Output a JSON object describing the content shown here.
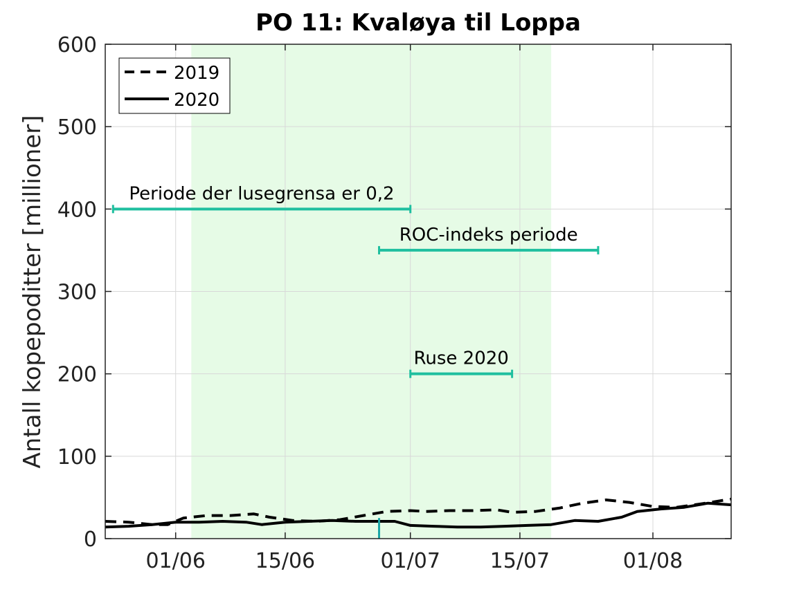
{
  "chart_data": {
    "type": "line",
    "title": "PO 11: Kvaløya til Loppa",
    "xlabel": "",
    "ylabel": "Antall kopepoditter [millioner]",
    "x_axis": "date",
    "xlim": [
      "2020-05-23",
      "2020-08-11"
    ],
    "ylim": [
      0,
      600
    ],
    "yticks": [
      0,
      100,
      200,
      300,
      400,
      500,
      600
    ],
    "xticks": [
      {
        "date": "2020-06-01",
        "label": "01/06"
      },
      {
        "date": "2020-06-15",
        "label": "15/06"
      },
      {
        "date": "2020-07-01",
        "label": "01/07"
      },
      {
        "date": "2020-07-15",
        "label": "15/07"
      },
      {
        "date": "2020-08-01",
        "label": "01/08"
      }
    ],
    "grid": true,
    "legend_position": "top-left",
    "shaded_region": {
      "start": "2020-06-03",
      "end": "2020-07-19",
      "color": "#e6fbe6"
    },
    "series": [
      {
        "name": "2019",
        "style": "dashed",
        "color": "#000000",
        "points": [
          [
            "2020-05-23",
            21
          ],
          [
            "2020-05-26",
            20
          ],
          [
            "2020-05-29",
            17
          ],
          [
            "2020-05-31",
            17
          ],
          [
            "2020-06-02",
            25
          ],
          [
            "2020-06-05",
            28
          ],
          [
            "2020-06-08",
            28
          ],
          [
            "2020-06-11",
            30
          ],
          [
            "2020-06-13",
            26
          ],
          [
            "2020-06-16",
            22
          ],
          [
            "2020-06-19",
            21
          ],
          [
            "2020-06-22",
            23
          ],
          [
            "2020-06-25",
            28
          ],
          [
            "2020-06-28",
            33
          ],
          [
            "2020-07-01",
            34
          ],
          [
            "2020-07-03",
            33
          ],
          [
            "2020-07-06",
            34
          ],
          [
            "2020-07-09",
            34
          ],
          [
            "2020-07-12",
            35
          ],
          [
            "2020-07-14",
            32
          ],
          [
            "2020-07-17",
            33
          ],
          [
            "2020-07-20",
            37
          ],
          [
            "2020-07-23",
            43
          ],
          [
            "2020-07-26",
            47
          ],
          [
            "2020-07-29",
            44
          ],
          [
            "2020-08-01",
            39
          ],
          [
            "2020-08-04",
            38
          ],
          [
            "2020-08-07",
            42
          ],
          [
            "2020-08-11",
            48
          ]
        ]
      },
      {
        "name": "2020",
        "style": "solid",
        "color": "#000000",
        "points": [
          [
            "2020-05-23",
            14
          ],
          [
            "2020-05-26",
            15
          ],
          [
            "2020-05-29",
            17
          ],
          [
            "2020-06-01",
            20
          ],
          [
            "2020-06-04",
            20
          ],
          [
            "2020-06-07",
            21
          ],
          [
            "2020-06-10",
            20
          ],
          [
            "2020-06-12",
            17
          ],
          [
            "2020-06-15",
            20
          ],
          [
            "2020-06-18",
            21
          ],
          [
            "2020-06-21",
            22
          ],
          [
            "2020-06-24",
            21
          ],
          [
            "2020-06-27",
            21
          ],
          [
            "2020-06-29",
            21
          ],
          [
            "2020-07-01",
            16
          ],
          [
            "2020-07-04",
            15
          ],
          [
            "2020-07-07",
            14
          ],
          [
            "2020-07-10",
            14
          ],
          [
            "2020-07-13",
            15
          ],
          [
            "2020-07-16",
            16
          ],
          [
            "2020-07-19",
            17
          ],
          [
            "2020-07-22",
            22
          ],
          [
            "2020-07-25",
            21
          ],
          [
            "2020-07-28",
            26
          ],
          [
            "2020-07-30",
            33
          ],
          [
            "2020-08-02",
            36
          ],
          [
            "2020-08-05",
            38
          ],
          [
            "2020-08-08",
            43
          ],
          [
            "2020-08-11",
            41
          ]
        ]
      }
    ],
    "annotations": [
      {
        "label": "Periode der lusegrensa er 0,2",
        "start": "2020-05-24",
        "end": "2020-07-01",
        "y": 400,
        "color": "#1fbf9f"
      },
      {
        "label": "ROC-indeks periode",
        "start": "2020-06-27",
        "end": "2020-07-25",
        "y": 350,
        "color": "#1fbf9f"
      },
      {
        "label": "Ruse 2020",
        "start": "2020-07-01",
        "end": "2020-07-14",
        "y": 200,
        "color": "#1fbf9f"
      }
    ],
    "marker": {
      "date": "2020-06-27",
      "y_top": 25,
      "color": "#1aa6a6"
    }
  }
}
